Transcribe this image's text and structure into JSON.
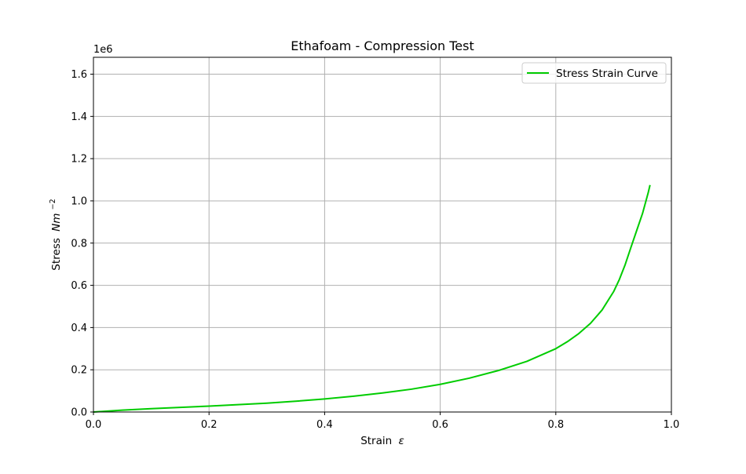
{
  "chart_data": {
    "type": "line",
    "title": "Ethafoam - Compression Test",
    "xlabel": "Strain",
    "xlabel_symbol": "ε",
    "ylabel": "Stress",
    "ylabel_unit_base": "Nm",
    "ylabel_unit_exp": "−2",
    "y_offset_label": "1e6",
    "xlim": [
      0.0,
      1.0
    ],
    "ylim": [
      0.0,
      1.68
    ],
    "xticks": [
      0.0,
      0.2,
      0.4,
      0.6,
      0.8,
      1.0
    ],
    "xtick_labels": [
      "0.0",
      "0.2",
      "0.4",
      "0.6",
      "0.8",
      "1.0"
    ],
    "yticks": [
      0.0,
      0.2,
      0.4,
      0.6,
      0.8,
      1.0,
      1.2,
      1.4,
      1.6
    ],
    "ytick_labels": [
      "0.0",
      "0.2",
      "0.4",
      "0.6",
      "0.8",
      "1.0",
      "1.2",
      "1.4",
      "1.6"
    ],
    "grid": true,
    "legend_position": "top-right",
    "series": [
      {
        "name": "Stress Strain Curve",
        "color": "#00cc00",
        "x": [
          0.0,
          0.05,
          0.1,
          0.15,
          0.2,
          0.25,
          0.3,
          0.35,
          0.4,
          0.45,
          0.5,
          0.55,
          0.6,
          0.65,
          0.7,
          0.75,
          0.8,
          0.82,
          0.84,
          0.86,
          0.88,
          0.9,
          0.91,
          0.92,
          0.93,
          0.94,
          0.95,
          0.96,
          0.963
        ],
        "y": [
          0.0,
          0.009,
          0.016,
          0.022,
          0.028,
          0.035,
          0.042,
          0.051,
          0.062,
          0.075,
          0.09,
          0.108,
          0.131,
          0.16,
          0.196,
          0.24,
          0.3,
          0.333,
          0.372,
          0.42,
          0.483,
          0.57,
          0.628,
          0.698,
          0.78,
          0.86,
          0.94,
          1.04,
          1.075
        ]
      }
    ]
  }
}
